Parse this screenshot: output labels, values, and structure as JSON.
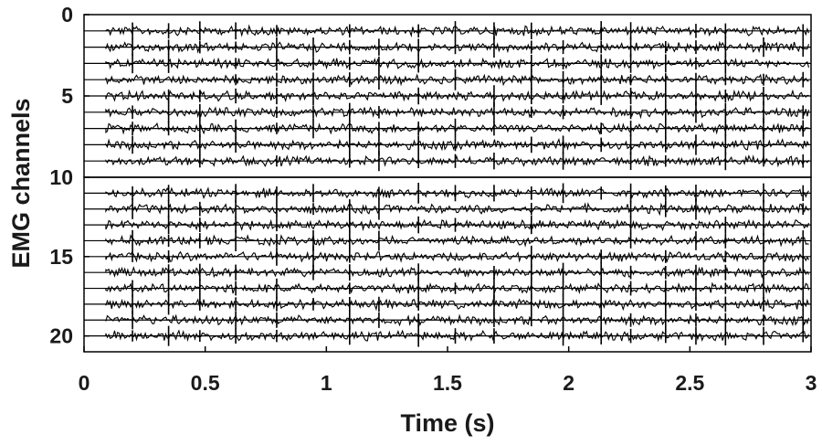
{
  "chart_data": {
    "type": "line",
    "title": "",
    "xlabel": "Time (s)",
    "ylabel": "EMG channels",
    "xlim": [
      0,
      3
    ],
    "ylim": [
      0,
      21
    ],
    "y_reversed": true,
    "x_ticks": [
      "0",
      "0.5",
      "1",
      "1.5",
      "2",
      "2.5",
      "3"
    ],
    "x_tick_values": [
      0,
      0.5,
      1,
      1.5,
      2,
      2.5,
      3
    ],
    "y_ticks": [
      "0",
      "5",
      "10",
      "15",
      "20"
    ],
    "y_tick_values": [
      0,
      5,
      10,
      15,
      20
    ],
    "grid": false,
    "legend": "none",
    "panels": [
      {
        "channels": [
          1,
          2,
          3,
          4,
          5,
          6,
          7,
          8,
          9
        ],
        "range": [
          0,
          10
        ]
      },
      {
        "channels": [
          11,
          12,
          13,
          14,
          15,
          16,
          17,
          18,
          19,
          20
        ],
        "range": [
          10,
          21
        ]
      }
    ],
    "signal_start_s": 0.09,
    "colors": {
      "trace": "#000000",
      "axes": "#000000"
    }
  }
}
